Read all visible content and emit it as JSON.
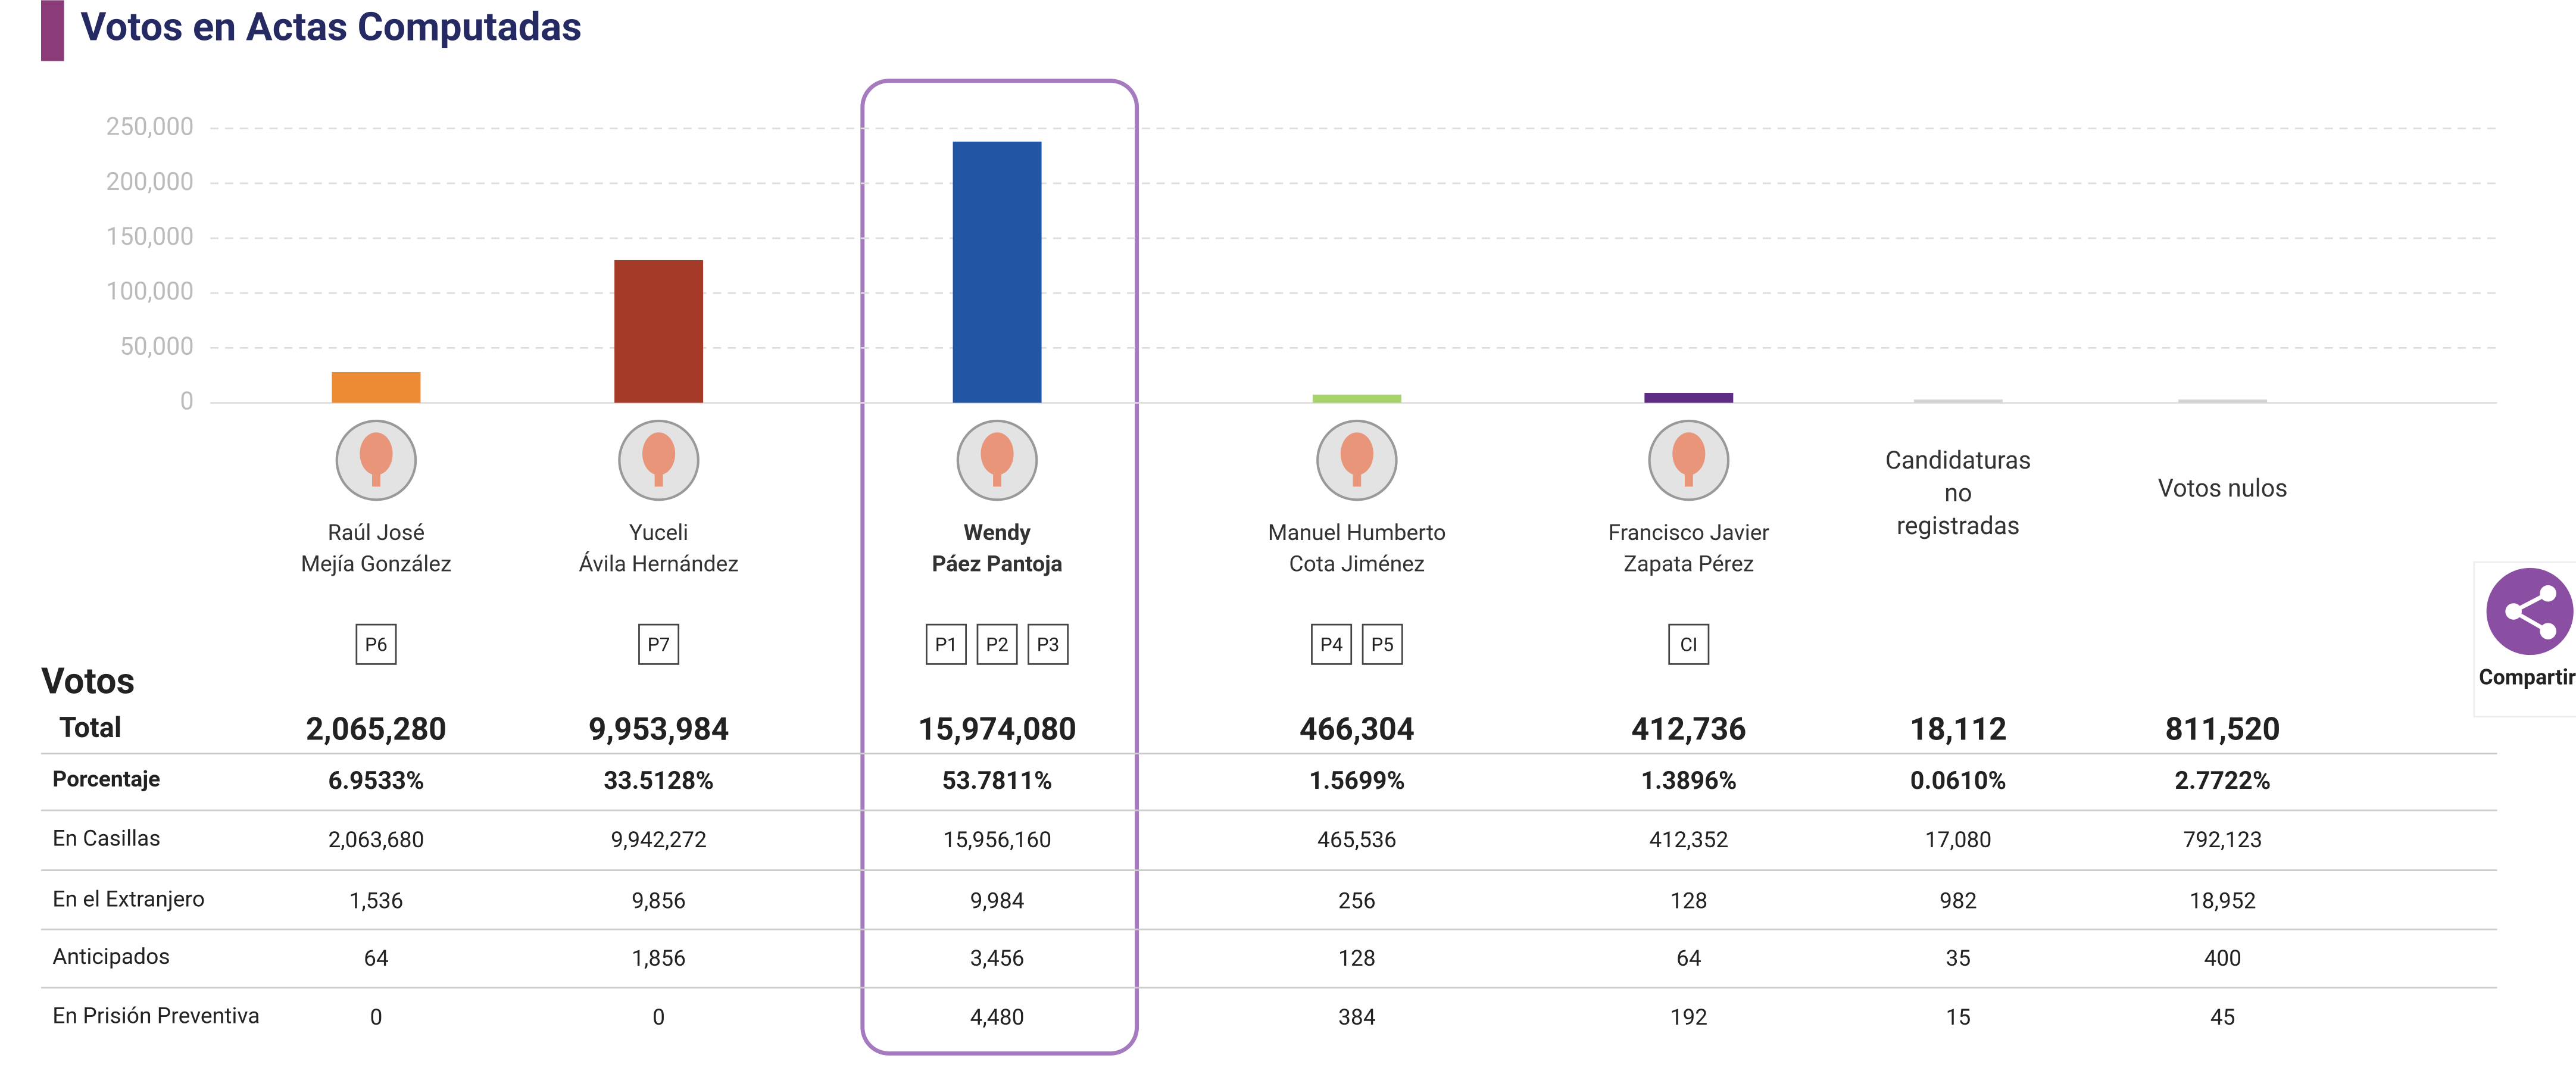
{
  "header": {
    "title": "Votos en Actas Computadas"
  },
  "chart_data": {
    "type": "bar",
    "categories": [
      [
        "Raúl José",
        "Mejía González"
      ],
      [
        "Yuceli",
        "Ávila Hernández"
      ],
      [
        "Wendy",
        "Páez Pantoja"
      ],
      [
        "Manuel Humberto",
        "Cota Jiménez"
      ],
      [
        "Francisco Javier",
        "Zapata Pérez"
      ],
      [
        "Candidaturas",
        "no",
        "registradas"
      ],
      [
        "Votos nulos"
      ]
    ],
    "parties": [
      [
        "P6"
      ],
      [
        "P7"
      ],
      [
        "P1",
        "P2",
        "P3"
      ],
      [
        "P4",
        "P5"
      ],
      [
        "CI"
      ],
      [],
      []
    ],
    "values": [
      28000,
      130000,
      238000,
      7500,
      9000,
      3000,
      3000
    ],
    "colors": [
      "#ed8b35",
      "#a63a28",
      "#2355a5",
      "#a8d26a",
      "#5c2d82",
      "#d4d4d4",
      "#d4d4d4"
    ],
    "ylim": [
      0,
      250000
    ],
    "yticks": [
      0,
      {
        "value": 50000,
        "label": "50,000"
      },
      {
        "value": 100000,
        "label": "100,000"
      },
      {
        "value": 150000,
        "label": "150,000"
      },
      {
        "value": 200000,
        "label": "200,000"
      },
      {
        "value": 250000,
        "label": "250,000"
      }
    ],
    "grid": true
  },
  "table": {
    "title": "Votos",
    "rows": [
      [
        "Total",
        "2,065,280",
        "9,953,984",
        "15,974,080",
        "466,304",
        "412,736",
        "18,112",
        "811,520"
      ],
      [
        "Porcentaje",
        "6.9533%",
        "33.5128%",
        "53.7811%",
        "1.5699%",
        "1.3896%",
        "0.0610%",
        "2.7722%"
      ],
      [
        "En Casillas",
        "2,063,680",
        "9,942,272",
        "15,956,160",
        "465,536",
        "412,352",
        "17,080",
        "792,123"
      ],
      [
        "En el Extranjero",
        "1,536",
        "9,856",
        "9,984",
        "256",
        "128",
        "982",
        "18,952"
      ],
      [
        "Anticipados",
        "64",
        "1,856",
        "3,456",
        "128",
        "64",
        "35",
        "400"
      ],
      [
        "En Prisión Preventiva",
        "0",
        "0",
        "4,480",
        "384",
        "192",
        "15",
        "45"
      ]
    ]
  },
  "share": {
    "label": "Compartir"
  }
}
